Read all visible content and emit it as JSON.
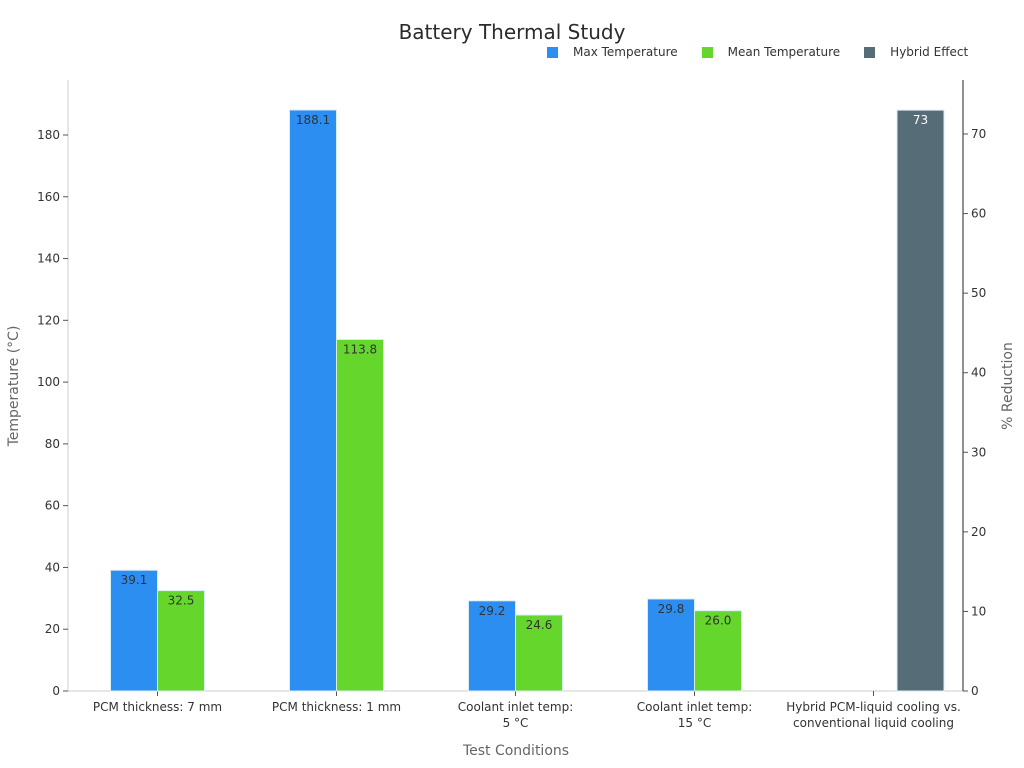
{
  "chart_data": {
    "type": "bar",
    "title": "Battery Thermal Study",
    "xlabel": "Test Conditions",
    "ylabel": "Temperature (°C)",
    "y2label": "% Reduction",
    "ylim": [
      0,
      195
    ],
    "y2lim": [
      0,
      76.5
    ],
    "yticks": [
      0,
      20,
      40,
      60,
      80,
      100,
      120,
      140,
      160,
      180
    ],
    "y2ticks": [
      0,
      10,
      20,
      30,
      40,
      50,
      60,
      70
    ],
    "grid": false,
    "legend_position": "top-right",
    "categories": [
      "PCM thickness: 7 mm",
      "PCM thickness: 1 mm",
      "Coolant inlet temp: 5 °C",
      "Coolant inlet temp: 15 °C",
      "Hybrid PCM-liquid cooling vs. conventional liquid cooling"
    ],
    "category_lines": [
      [
        "PCM thickness: 7 mm"
      ],
      [
        "PCM thickness: 1 mm"
      ],
      [
        "Coolant inlet temp:",
        "5 °C"
      ],
      [
        "Coolant inlet temp:",
        "15 °C"
      ],
      [
        "Hybrid PCM-liquid cooling vs.",
        "conventional liquid cooling"
      ]
    ],
    "series": [
      {
        "name": "Max Temperature",
        "axis": "left",
        "color": "#2d8ef2",
        "values": [
          39.1,
          188.1,
          29.2,
          29.8,
          null
        ],
        "labels": [
          "39.1",
          "188.1",
          "29.2",
          "29.8",
          ""
        ]
      },
      {
        "name": "Mean Temperature",
        "axis": "left",
        "color": "#65d62b",
        "values": [
          32.5,
          113.8,
          24.6,
          26.0,
          null
        ],
        "labels": [
          "32.5",
          "113.8",
          "24.6",
          "26.0",
          ""
        ]
      },
      {
        "name": "Hybrid Effect",
        "axis": "right",
        "color": "#566d78",
        "values": [
          null,
          null,
          null,
          null,
          73
        ],
        "labels": [
          "",
          "",
          "",
          "",
          "73"
        ]
      }
    ]
  },
  "legend": [
    {
      "label": "Max Temperature",
      "color": "#2d8ef2"
    },
    {
      "label": "Mean Temperature",
      "color": "#65d62b"
    },
    {
      "label": "Hybrid Effect",
      "color": "#566d78"
    }
  ]
}
